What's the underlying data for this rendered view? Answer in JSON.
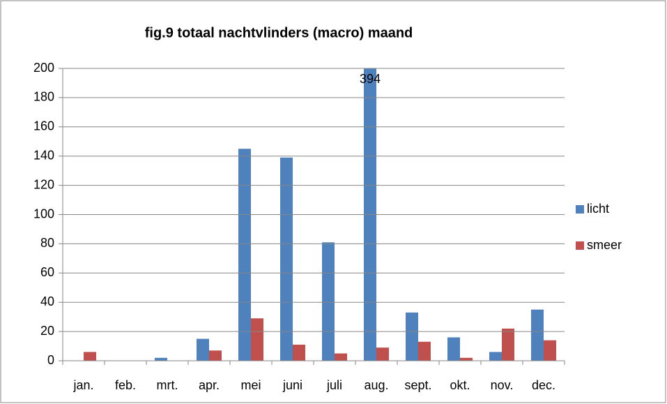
{
  "chart_data": {
    "type": "bar",
    "title": "fig.9 totaal nachtvlinders (macro) maand",
    "categories": [
      "jan.",
      "feb.",
      "mrt.",
      "apr.",
      "mei",
      "juni",
      "juli",
      "aug.",
      "sept.",
      "okt.",
      "nov.",
      "dec."
    ],
    "series": [
      {
        "name": "licht",
        "color": "#4f81bd",
        "values": [
          0,
          0,
          2,
          15,
          145,
          139,
          81,
          394,
          33,
          16,
          6,
          35
        ],
        "value_labels": [
          null,
          null,
          null,
          null,
          null,
          null,
          null,
          "394",
          null,
          null,
          null,
          null
        ]
      },
      {
        "name": "smeer",
        "color": "#c0504d",
        "values": [
          6,
          0,
          0,
          7,
          29,
          11,
          5,
          9,
          13,
          2,
          22,
          14
        ]
      }
    ],
    "ylim": [
      0,
      200
    ],
    "yticks": [
      0,
      20,
      40,
      60,
      80,
      100,
      120,
      140,
      160,
      180,
      200
    ],
    "grid": true,
    "legend": "right"
  }
}
